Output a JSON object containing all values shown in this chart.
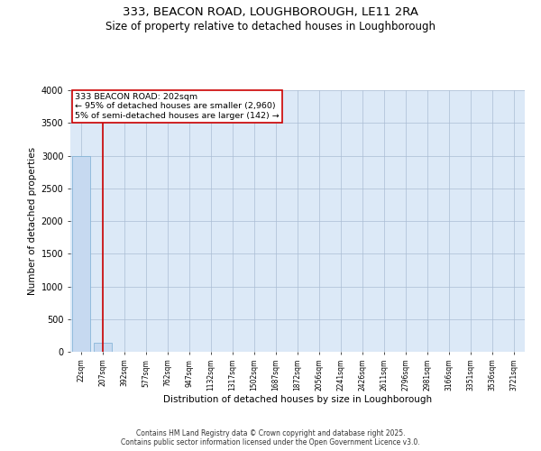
{
  "title_line1": "333, BEACON ROAD, LOUGHBOROUGH, LE11 2RA",
  "title_line2": "Size of property relative to detached houses in Loughborough",
  "xlabel": "Distribution of detached houses by size in Loughborough",
  "ylabel": "Number of detached properties",
  "annotation_line1": "333 BEACON ROAD: 202sqm",
  "annotation_line2": "← 95% of detached houses are smaller (2,960)",
  "annotation_line3": "5% of semi-detached houses are larger (142) →",
  "footer_line1": "Contains HM Land Registry data © Crown copyright and database right 2025.",
  "footer_line2": "Contains public sector information licensed under the Open Government Licence v3.0.",
  "bar_labels": [
    "22sqm",
    "207sqm",
    "392sqm",
    "577sqm",
    "762sqm",
    "947sqm",
    "1132sqm",
    "1317sqm",
    "1502sqm",
    "1687sqm",
    "1872sqm",
    "2056sqm",
    "2241sqm",
    "2426sqm",
    "2611sqm",
    "2796sqm",
    "2981sqm",
    "3166sqm",
    "3351sqm",
    "3536sqm",
    "3721sqm"
  ],
  "bar_values": [
    3000,
    142,
    0,
    0,
    0,
    0,
    0,
    0,
    0,
    0,
    0,
    0,
    0,
    0,
    0,
    0,
    0,
    0,
    0,
    0,
    0
  ],
  "bar_color": "#c6d9f0",
  "bar_edgecolor": "#7bafd4",
  "red_line_x": 1,
  "ylim": [
    0,
    4000
  ],
  "yticks": [
    0,
    500,
    1000,
    1500,
    2000,
    2500,
    3000,
    3500,
    4000
  ],
  "background_color": "#dce9f7",
  "grid_color": "#aabdd4",
  "annotation_box_color": "#cc0000",
  "figsize": [
    6.0,
    5.0
  ],
  "dpi": 100
}
